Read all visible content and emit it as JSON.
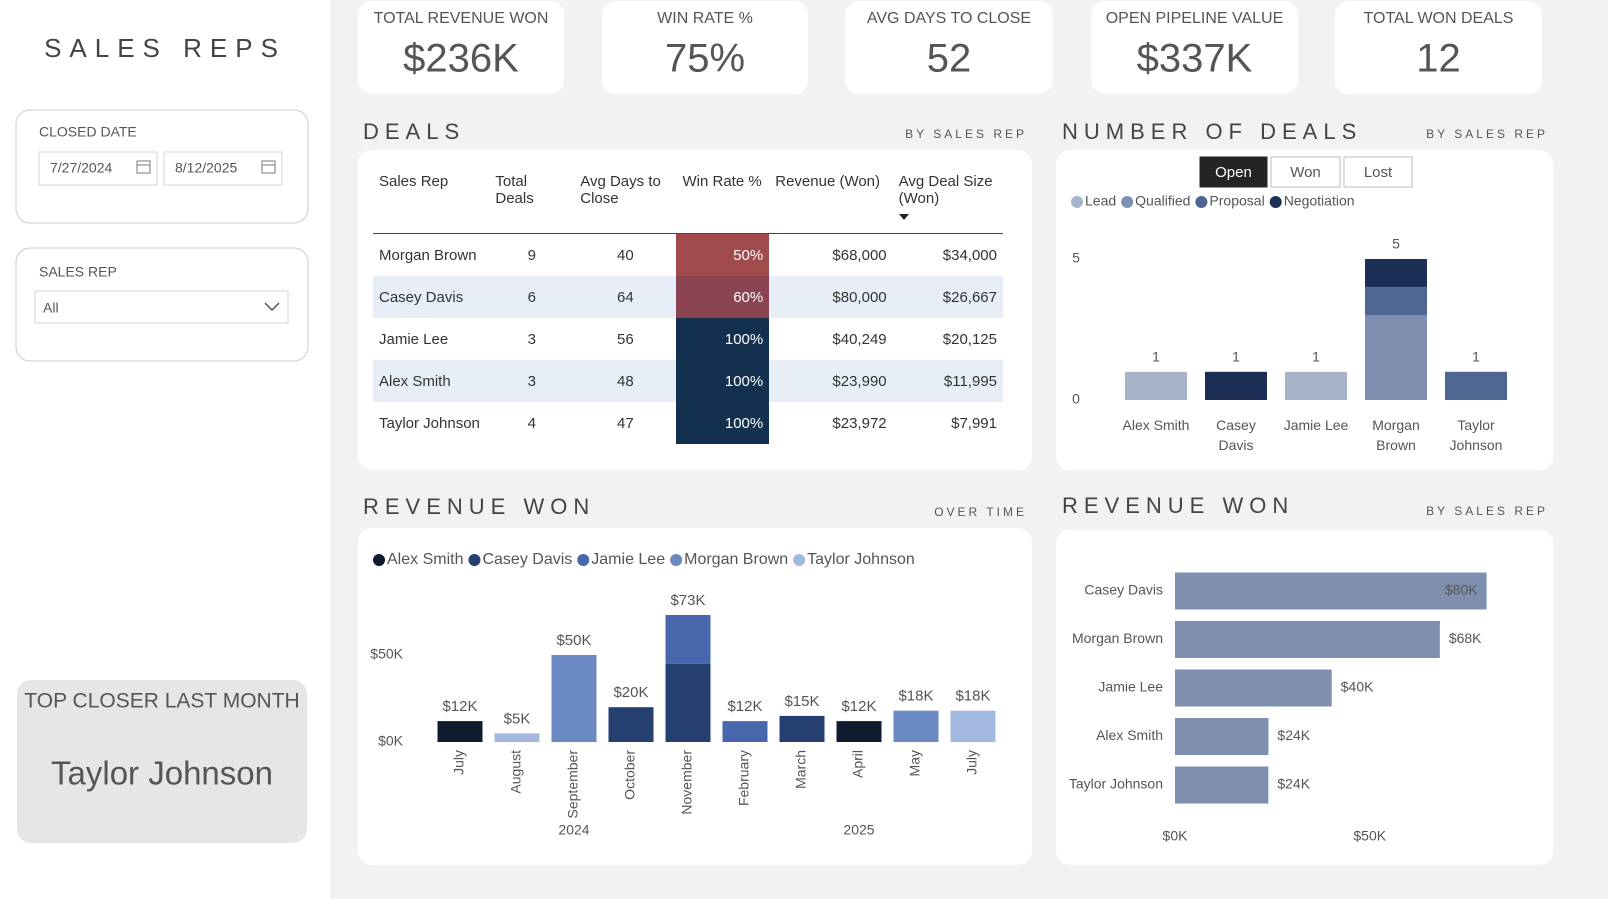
{
  "sidebar": {
    "title": "SALES REPS",
    "date_filter": {
      "label": "CLOSED DATE",
      "start": "7/27/2024",
      "end": "8/12/2025"
    },
    "rep_filter": {
      "label": "SALES REP",
      "value": "All"
    },
    "top_closer": {
      "label": "TOP CLOSER LAST MONTH",
      "name": "Taylor Johnson"
    }
  },
  "kpis": [
    {
      "label": "TOTAL REVENUE WON",
      "value": "$236K"
    },
    {
      "label": "WIN RATE %",
      "value": "75%"
    },
    {
      "label": "AVG DAYS TO CLOSE",
      "value": "52"
    },
    {
      "label": "OPEN PIPELINE VALUE",
      "value": "$337K"
    },
    {
      "label": "TOTAL WON DEALS",
      "value": "12"
    }
  ],
  "deals_table": {
    "title": "DEALS",
    "subtitle": "BY SALES REP",
    "columns": [
      "Sales Rep",
      "Total Deals",
      "Avg Days to Close",
      "Win Rate %",
      "Revenue (Won)",
      "Avg Deal Size (Won)"
    ],
    "rows": [
      [
        "Morgan Brown",
        9,
        40,
        "50%",
        "$68,000",
        "$34,000"
      ],
      [
        "Casey Davis",
        6,
        64,
        "60%",
        "$80,000",
        "$26,667"
      ],
      [
        "Jamie Lee",
        3,
        56,
        "100%",
        "$40,249",
        "$20,125"
      ],
      [
        "Alex Smith",
        3,
        48,
        "100%",
        "$23,990",
        "$11,995"
      ],
      [
        "Taylor Johnson",
        4,
        47,
        "100%",
        "$23,972",
        "$7,991"
      ]
    ],
    "win_rate_colors": [
      "#a04a4b",
      "#8a4452",
      "#13304f",
      "#13304f",
      "#13304f"
    ]
  },
  "chart_data": [
    {
      "type": "stacked_bar",
      "title": "NUMBER OF DEALS",
      "subtitle": "BY SALES REP",
      "buttons": [
        "Open",
        "Won",
        "Lost"
      ],
      "selected_button": "Open",
      "categories": [
        "Alex Smith",
        "Casey Davis",
        "Jamie Lee",
        "Morgan Brown",
        "Taylor Johnson"
      ],
      "series": [
        {
          "name": "Lead",
          "color": "#a7b3cb",
          "values": [
            1,
            null,
            1,
            null,
            null
          ]
        },
        {
          "name": "Qualified",
          "color": "#7f8faf",
          "values": [
            null,
            null,
            null,
            3,
            null
          ]
        },
        {
          "name": "Proposal",
          "color": "#4e6690",
          "values": [
            null,
            null,
            null,
            1,
            1
          ]
        },
        {
          "name": "Negotiation",
          "color": "#1d2f55",
          "values": [
            null,
            1,
            null,
            1,
            null
          ]
        }
      ],
      "totals": [
        1,
        1,
        1,
        5,
        1
      ],
      "ylim": [
        0,
        5
      ],
      "yticks": [
        0,
        5
      ]
    },
    {
      "type": "stacked_bar",
      "title": "REVENUE WON",
      "subtitle": "OVER TIME",
      "categories": [
        "July",
        "August",
        "September",
        "October",
        "November",
        "February",
        "March",
        "April",
        "May",
        "July"
      ],
      "years": [
        "2024",
        "2024",
        "2024",
        "2024",
        "2024",
        "2025",
        "2025",
        "2025",
        "2025",
        "2025"
      ],
      "series": [
        {
          "name": "Alex Smith",
          "color": "#101b30",
          "values": [
            12000,
            null,
            null,
            null,
            null,
            null,
            null,
            12000,
            null,
            null
          ]
        },
        {
          "name": "Casey Davis",
          "color": "#253f70",
          "values": [
            null,
            null,
            null,
            20000,
            45000,
            null,
            15000,
            null,
            null,
            null
          ]
        },
        {
          "name": "Jamie Lee",
          "color": "#4866ab",
          "values": [
            null,
            null,
            null,
            null,
            28000,
            12000,
            null,
            null,
            null,
            null
          ]
        },
        {
          "name": "Morgan Brown",
          "color": "#6a88c1",
          "values": [
            null,
            null,
            50000,
            null,
            null,
            null,
            null,
            null,
            18000,
            null
          ]
        },
        {
          "name": "Taylor Johnson",
          "color": "#a3b8e0",
          "values": [
            null,
            5000,
            null,
            null,
            null,
            null,
            null,
            null,
            null,
            18000
          ]
        }
      ],
      "totals": [
        12000,
        5000,
        50000,
        20000,
        73000,
        12000,
        15000,
        12000,
        18000,
        18000
      ],
      "total_labels": [
        "$12K",
        "$5K",
        "$50K",
        "$20K",
        "$73K",
        "$12K",
        "$15K",
        "$12K",
        "$18K",
        "$18K"
      ],
      "ylim": [
        0,
        80000
      ],
      "yticks": [
        {
          "value": 0,
          "label": "$0K"
        },
        {
          "value": 50000,
          "label": "$50K"
        }
      ]
    },
    {
      "type": "hbar",
      "title": "REVENUE WON",
      "subtitle": "BY SALES REP",
      "categories": [
        "Casey Davis",
        "Morgan Brown",
        "Jamie Lee",
        "Alex Smith",
        "Taylor Johnson"
      ],
      "values": [
        80000,
        68000,
        40249,
        23990,
        23972
      ],
      "value_labels": [
        "$80K",
        "$68K",
        "$40K",
        "$24K",
        "$24K"
      ],
      "color": "#7f8faf",
      "xlim": [
        0,
        95000
      ],
      "xticks": [
        {
          "value": 0,
          "label": "$0K"
        },
        {
          "value": 50000,
          "label": "$50K"
        }
      ]
    }
  ]
}
